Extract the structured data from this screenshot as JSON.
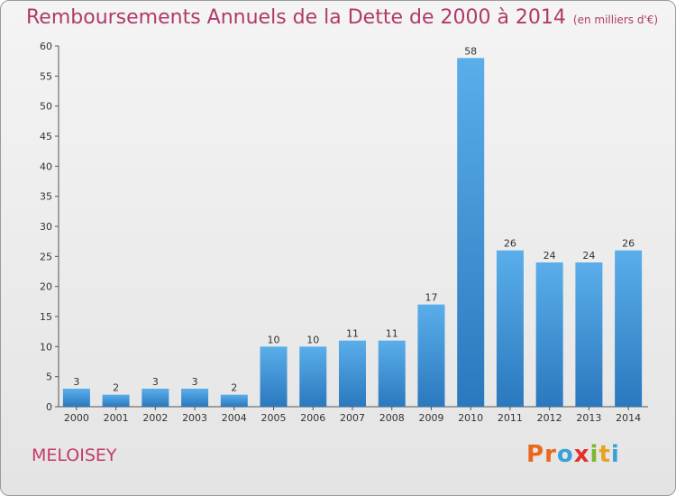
{
  "chart_data": {
    "type": "bar",
    "title": "Remboursements Annuels de la Dette de 2000 à 2014",
    "subtitle": "(en milliers d'€)",
    "categories": [
      "2000",
      "2001",
      "2002",
      "2003",
      "2004",
      "2005",
      "2006",
      "2007",
      "2008",
      "2009",
      "2010",
      "2011",
      "2012",
      "2013",
      "2014"
    ],
    "values": [
      3,
      2,
      3,
      3,
      2,
      10,
      10,
      11,
      11,
      17,
      58,
      26,
      24,
      24,
      26
    ],
    "ylim": [
      0,
      60
    ],
    "yticks": [
      0,
      5,
      10,
      15,
      20,
      25,
      30,
      35,
      40,
      45,
      50,
      55,
      60
    ],
    "grid": false,
    "bar_color": "#3b8fd6"
  },
  "footer": {
    "town": "MELOISEY",
    "logo_letters": [
      {
        "ch": "P",
        "color": "#e8681e"
      },
      {
        "ch": "r",
        "color": "#e8681e"
      },
      {
        "ch": "o",
        "color": "#3aa0d8"
      },
      {
        "ch": "x",
        "color": "#e2302e"
      },
      {
        "ch": "i",
        "color": "#7ab82e"
      },
      {
        "ch": "t",
        "color": "#e8a21e"
      },
      {
        "ch": "i",
        "color": "#3aa0d8"
      }
    ]
  }
}
